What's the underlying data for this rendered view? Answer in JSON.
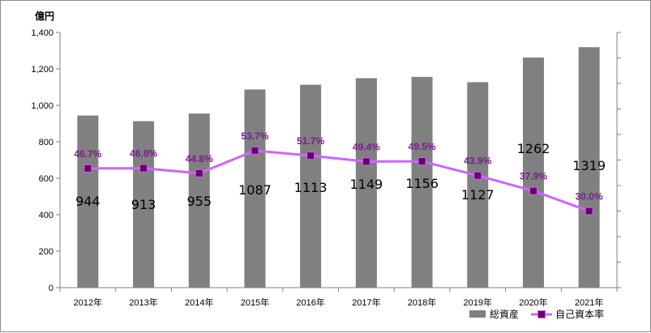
{
  "chart_data": {
    "type": "bar",
    "unit_label": "億円",
    "categories": [
      "2012年",
      "2013年",
      "2014年",
      "2015年",
      "2016年",
      "2017年",
      "2018年",
      "2019年",
      "2020年",
      "2021年"
    ],
    "ylim": [
      0,
      1400
    ],
    "yticks": [
      "0",
      "200",
      "400",
      "600",
      "800",
      "1,000",
      "1,200",
      "1,400"
    ],
    "grid": false,
    "legend_position": "bottom-right",
    "series": [
      {
        "name": "総資産",
        "kind": "bar",
        "color": "#808080",
        "values": [
          944,
          913,
          955,
          1087,
          1113,
          1149,
          1156,
          1127,
          1262,
          1319
        ],
        "labels": [
          "944",
          "913",
          "955",
          "1087",
          "1113",
          "1149",
          "1156",
          "1127",
          "1262",
          "1319"
        ]
      },
      {
        "name": "自己資本率",
        "kind": "line",
        "color": "#cc66ff",
        "marker_color": "#660066",
        "values": [
          46.7,
          46.8,
          44.8,
          53.7,
          51.7,
          49.4,
          49.5,
          43.9,
          37.9,
          30.0
        ],
        "labels": [
          "46.7%",
          "46.8%",
          "44.8%",
          "53.7%",
          "51.7%",
          "49.4%",
          "49.5%",
          "43.9%",
          "37.9%",
          "30.0%"
        ]
      }
    ]
  }
}
